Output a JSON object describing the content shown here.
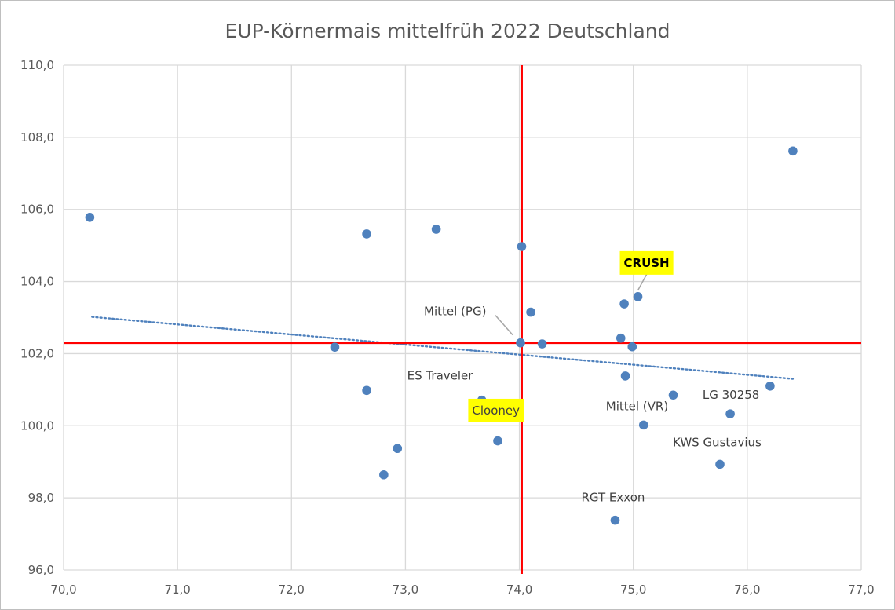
{
  "chart_data": {
    "type": "scatter",
    "title": "EUP-Körnermais mittelfrüh 2022 Deutschland",
    "xlabel": "",
    "ylabel": "",
    "xlim": [
      70.0,
      77.0
    ],
    "ylim": [
      96.0,
      110.0
    ],
    "x_ticks": [
      "70,0",
      "71,0",
      "72,0",
      "73,0",
      "74,0",
      "75,0",
      "76,0",
      "77,0"
    ],
    "y_ticks": [
      "96,0",
      "98,0",
      "100,0",
      "102,0",
      "104,0",
      "106,0",
      "108,0",
      "110,0"
    ],
    "grid": true,
    "marker_color": "#4f81bd",
    "reference_line_color": "#ff0000",
    "reference_lines": {
      "x": 74.02,
      "y": 102.3
    },
    "trendline": {
      "style": "dotted",
      "color": "#4f81bd",
      "from": [
        70.25,
        103.02
      ],
      "to": [
        76.4,
        101.3
      ]
    },
    "points": [
      {
        "x": 70.23,
        "y": 105.78,
        "label": ""
      },
      {
        "x": 72.38,
        "y": 102.18,
        "label": ""
      },
      {
        "x": 72.66,
        "y": 105.32,
        "label": ""
      },
      {
        "x": 72.66,
        "y": 100.98,
        "label": ""
      },
      {
        "x": 72.81,
        "y": 98.64,
        "label": ""
      },
      {
        "x": 72.93,
        "y": 99.37,
        "label": ""
      },
      {
        "x": 73.27,
        "y": 105.45,
        "label": ""
      },
      {
        "x": 73.67,
        "y": 100.71,
        "label": "ES Traveler"
      },
      {
        "x": 73.81,
        "y": 99.58,
        "label": ""
      },
      {
        "x": 73.93,
        "y": 100.53,
        "label": "Clooney",
        "highlight": true
      },
      {
        "x": 74.02,
        "y": 104.97,
        "label": ""
      },
      {
        "x": 74.01,
        "y": 102.3,
        "label": "Mittel (PG)"
      },
      {
        "x": 74.1,
        "y": 103.15,
        "label": ""
      },
      {
        "x": 74.2,
        "y": 102.27,
        "label": ""
      },
      {
        "x": 74.84,
        "y": 97.38,
        "label": "RGT Exxon"
      },
      {
        "x": 74.89,
        "y": 102.43,
        "label": ""
      },
      {
        "x": 74.92,
        "y": 103.38,
        "label": ""
      },
      {
        "x": 74.93,
        "y": 101.38,
        "label": ""
      },
      {
        "x": 74.99,
        "y": 102.19,
        "label": ""
      },
      {
        "x": 75.04,
        "y": 103.58,
        "label": "CRUSH",
        "highlight": true
      },
      {
        "x": 75.09,
        "y": 100.02,
        "label": "Mittel (VR)"
      },
      {
        "x": 75.35,
        "y": 100.85,
        "label": ""
      },
      {
        "x": 75.76,
        "y": 98.93,
        "label": "KWS Gustavius"
      },
      {
        "x": 75.85,
        "y": 100.33,
        "label": ""
      },
      {
        "x": 76.2,
        "y": 101.1,
        "label": "LG 30258"
      },
      {
        "x": 76.4,
        "y": 107.62,
        "label": ""
      }
    ]
  }
}
